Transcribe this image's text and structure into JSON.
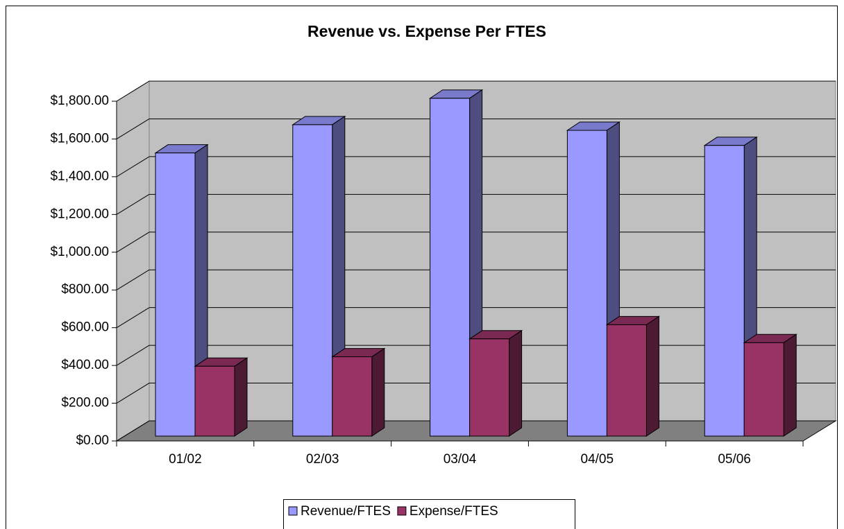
{
  "chart_data": {
    "type": "bar3d",
    "title": "Revenue vs. Expense Per FTES",
    "categories": [
      "01/02",
      "02/03",
      "03/04",
      "04/05",
      "05/06"
    ],
    "series": [
      {
        "name": "Revenue/FTES",
        "color": "#9999ff",
        "values": [
          1500,
          1650,
          1790,
          1620,
          1540
        ]
      },
      {
        "name": "Expense/FTES",
        "color": "#993366",
        "values": [
          370,
          420,
          515,
          590,
          495
        ]
      }
    ],
    "ylim": [
      0,
      1800
    ],
    "yticks": [
      {
        "value": 0,
        "label": "$0.00"
      },
      {
        "value": 200,
        "label": "$200.00"
      },
      {
        "value": 400,
        "label": "$400.00"
      },
      {
        "value": 600,
        "label": "$600.00"
      },
      {
        "value": 800,
        "label": "$800.00"
      },
      {
        "value": 1000,
        "label": "$1,000.00"
      },
      {
        "value": 1200,
        "label": "$1,200.00"
      },
      {
        "value": 1400,
        "label": "$1,400.00"
      },
      {
        "value": 1600,
        "label": "$1,600.00"
      },
      {
        "value": 1800,
        "label": "$1,800.00"
      }
    ],
    "grid": true,
    "legend": "bottom"
  }
}
